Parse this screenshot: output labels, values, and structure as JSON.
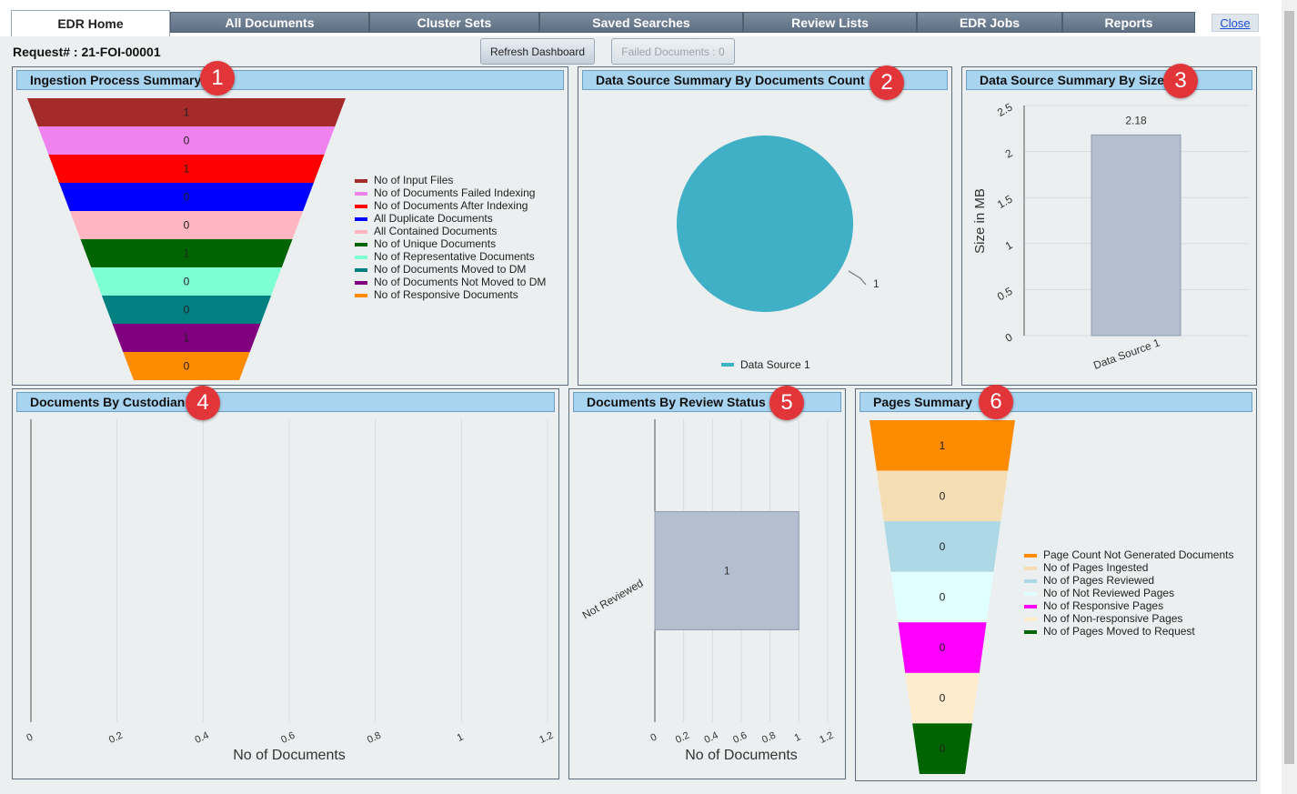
{
  "tabs": [
    {
      "label": "EDR Home",
      "active": true
    },
    {
      "label": "All Documents"
    },
    {
      "label": "Cluster Sets"
    },
    {
      "label": "Saved Searches"
    },
    {
      "label": "Review Lists"
    },
    {
      "label": "EDR Jobs"
    },
    {
      "label": "Reports"
    }
  ],
  "close_label": "Close",
  "request_label": "Request# : 21-FOI-00001",
  "refresh_label": "Refresh Dashboard",
  "failed_label": "Failed Documents : 0",
  "panels": {
    "ingestion": {
      "title": "Ingestion Process Summary",
      "badge": "1"
    },
    "count": {
      "title": "Data Source Summary By Documents Count",
      "badge": "2"
    },
    "size": {
      "title": "Data Source Summary By Size",
      "badge": "3"
    },
    "custodian": {
      "title": "Documents By Custodian",
      "badge": "4"
    },
    "review": {
      "title": "Documents By Review Status",
      "badge": "5"
    },
    "pages": {
      "title": "Pages Summary",
      "badge": "6"
    }
  },
  "chart_data": [
    {
      "type": "funnel",
      "name": "ingestion",
      "stages": [
        {
          "label": "No of Input Files",
          "value": 1,
          "color": "#a52a2a"
        },
        {
          "label": "No of Documents Failed Indexing",
          "value": 0,
          "color": "#ee82ee"
        },
        {
          "label": "No of Documents After Indexing",
          "value": 1,
          "color": "#ff0000"
        },
        {
          "label": "All Duplicate Documents",
          "value": 0,
          "color": "#0000ff"
        },
        {
          "label": "All Contained Documents",
          "value": 0,
          "color": "#ffb6c1"
        },
        {
          "label": "No of Unique Documents",
          "value": 1,
          "color": "#006400"
        },
        {
          "label": "No of Representative Documents",
          "value": 0,
          "color": "#7fffd4"
        },
        {
          "label": "No of Documents Moved to DM",
          "value": 0,
          "color": "#008080"
        },
        {
          "label": "No of Documents Not Moved to DM",
          "value": 1,
          "color": "#800080"
        },
        {
          "label": "No of Responsive Documents",
          "value": 0,
          "color": "#ff8c00"
        }
      ]
    },
    {
      "type": "pie",
      "name": "count",
      "slices": [
        {
          "label": "Data Source 1",
          "value": 1,
          "color": "#3fb0c6"
        }
      ],
      "data_label": "1",
      "legend": "bottom"
    },
    {
      "type": "bar",
      "name": "size",
      "categories": [
        "Data Source 1"
      ],
      "values": [
        2.18
      ],
      "value_label": "2.18",
      "ylabel": "Size in MB",
      "ylim": [
        0,
        2.5
      ],
      "yticks": [
        "0",
        "0.5",
        "1",
        "1.5",
        "2",
        "2.5"
      ]
    },
    {
      "type": "bar",
      "name": "custodian",
      "orientation": "horizontal",
      "categories": [],
      "values": [],
      "xlabel": "No of Documents",
      "xlim": [
        0,
        1.2
      ],
      "xticks": [
        "0",
        "0.2",
        "0.4",
        "0.6",
        "0.8",
        "1",
        "1.2"
      ]
    },
    {
      "type": "bar",
      "name": "review",
      "orientation": "horizontal",
      "categories": [
        "Not Reviewed"
      ],
      "values": [
        1
      ],
      "value_label": "1",
      "xlabel": "No of Documents",
      "xlim": [
        0,
        1.2
      ],
      "xticks": [
        "0",
        "0.2",
        "0.4",
        "0.6",
        "0.8",
        "1",
        "1.2"
      ]
    },
    {
      "type": "funnel",
      "name": "pages",
      "stages": [
        {
          "label": "Page Count Not Generated Documents",
          "value": 1,
          "color": "#ff8c00"
        },
        {
          "label": "No of Pages Ingested",
          "value": 0,
          "color": "#f5deb3"
        },
        {
          "label": "No of Pages Reviewed",
          "value": 0,
          "color": "#add8e6"
        },
        {
          "label": "No of Not Reviewed Pages",
          "value": 0,
          "color": "#e0ffff"
        },
        {
          "label": "No of Responsive Pages",
          "value": 0,
          "color": "#ff00ff"
        },
        {
          "label": "No of Non-responsive Pages",
          "value": 0,
          "color": "#ffebcd"
        },
        {
          "label": "No of Pages Moved to Request",
          "value": 0,
          "color": "#006400"
        }
      ]
    }
  ]
}
